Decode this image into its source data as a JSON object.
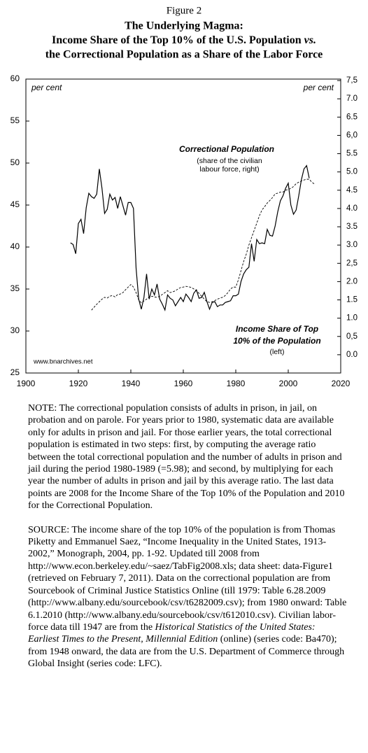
{
  "figure_label": "Figure 2",
  "chart_data": {
    "type": "line",
    "title": [
      "The Underlying Magma:",
      "Income Share of the Top 10% of the U.S. Population",
      "vs.",
      "the Correctional Population as a Share of the Labor Force"
    ],
    "y_unit_label": "per cent",
    "y2_unit_label": "per cent",
    "annotations": [
      "Correctional Population",
      "(share of the civilian",
      "labour force, right)",
      "Income Share of Top",
      "10% of the Population",
      "(left)",
      "www.bnarchives.net"
    ],
    "x": [
      1917,
      1918,
      1919,
      1920,
      1921,
      1922,
      1923,
      1924,
      1925,
      1926,
      1927,
      1928,
      1929,
      1930,
      1931,
      1932,
      1933,
      1934,
      1935,
      1936,
      1937,
      1938,
      1939,
      1940,
      1941,
      1942,
      1943,
      1944,
      1945,
      1946,
      1947,
      1948,
      1949,
      1950,
      1951,
      1952,
      1953,
      1954,
      1955,
      1956,
      1957,
      1958,
      1959,
      1960,
      1961,
      1962,
      1963,
      1964,
      1965,
      1966,
      1967,
      1968,
      1969,
      1970,
      1971,
      1972,
      1973,
      1974,
      1975,
      1976,
      1977,
      1978,
      1979,
      1980,
      1981,
      1982,
      1983,
      1984,
      1985,
      1986,
      1987,
      1988,
      1989,
      1990,
      1991,
      1992,
      1993,
      1994,
      1995,
      1996,
      1997,
      1998,
      1999,
      2000,
      2001,
      2002,
      2003,
      2004,
      2005,
      2006,
      2007,
      2008,
      2009,
      2010
    ],
    "series": [
      {
        "color": "#000000",
        "line_style": "solid",
        "values": [
          40.5,
          40.3,
          39.2,
          42.8,
          43.3,
          41.6,
          44.7,
          46.4,
          46.0,
          45.8,
          46.3,
          49.3,
          47.0,
          44.0,
          44.5,
          46.3,
          45.6,
          45.9,
          44.6,
          46.0,
          44.9,
          43.8,
          45.3,
          45.3,
          44.6,
          37.5,
          33.8,
          32.6,
          34.0,
          36.8,
          33.8,
          35.0,
          34.3,
          35.6,
          33.8,
          33.2,
          32.5,
          34.3,
          33.9,
          33.7,
          33.0,
          33.5,
          34.0,
          33.5,
          34.4,
          34.0,
          33.5,
          34.5,
          34.9,
          33.9,
          34.0,
          34.6,
          33.5,
          32.6,
          33.4,
          33.5,
          32.9,
          33.1,
          33.1,
          33.4,
          33.5,
          33.6,
          34.2,
          34.2,
          34.4,
          35.9,
          36.8,
          37.3,
          37.6,
          40.4,
          38.3,
          40.9,
          40.4,
          40.5,
          40.4,
          42.1,
          41.4,
          41.3,
          42.5,
          44.2,
          45.5,
          46.1,
          47.0,
          47.6,
          45.0,
          43.9,
          44.4,
          46.1,
          48.0,
          49.3,
          49.7,
          48.2,
          null,
          null
        ]
      },
      {
        "color": "#000000",
        "line_style": "dashed",
        "axis": "y2",
        "values": [
          null,
          null,
          null,
          null,
          null,
          null,
          null,
          null,
          1.22,
          1.3,
          1.38,
          1.45,
          1.52,
          1.57,
          1.55,
          1.6,
          1.62,
          1.58,
          1.65,
          1.66,
          1.7,
          1.78,
          1.85,
          1.92,
          1.85,
          1.7,
          1.5,
          1.42,
          1.47,
          1.52,
          1.58,
          1.6,
          1.58,
          1.57,
          1.6,
          1.65,
          1.7,
          1.75,
          1.7,
          1.72,
          1.75,
          1.8,
          1.84,
          1.85,
          1.87,
          1.86,
          1.84,
          1.8,
          1.75,
          1.68,
          1.6,
          1.52,
          1.45,
          1.43,
          1.45,
          1.48,
          1.52,
          1.55,
          1.57,
          1.62,
          1.7,
          1.8,
          1.85,
          1.85,
          2.05,
          2.3,
          2.55,
          2.75,
          3.0,
          3.2,
          3.4,
          3.6,
          3.8,
          3.96,
          4.05,
          4.15,
          4.22,
          4.3,
          4.4,
          4.42,
          4.45,
          4.45,
          4.5,
          4.52,
          4.55,
          4.6,
          4.68,
          4.72,
          4.75,
          4.78,
          4.8,
          4.8,
          4.72,
          4.67
        ]
      }
    ],
    "xlim": [
      1900,
      2020
    ],
    "xticks": [
      1900,
      1920,
      1940,
      1960,
      1980,
      2000,
      2020
    ],
    "ylim": [
      25,
      60
    ],
    "yticks": [
      25,
      30,
      35,
      40,
      45,
      50,
      55,
      60
    ],
    "y2lim": [
      -0.5,
      7.54
    ],
    "y2ticks": [
      {
        "value": 0,
        "label": "0.0"
      },
      {
        "value": 0.5,
        "label": "0,5"
      },
      {
        "value": 1,
        "label": "1.0"
      },
      {
        "value": 1.5,
        "label": "1.5"
      },
      {
        "value": 2,
        "label": "2.0"
      },
      {
        "value": 2.5,
        "label": "2,5"
      },
      {
        "value": 3,
        "label": "3.0"
      },
      {
        "value": 3.5,
        "label": "3.5"
      },
      {
        "value": 4,
        "label": "4.0"
      },
      {
        "value": 4.5,
        "label": "4.5"
      },
      {
        "value": 5,
        "label": "5.0"
      },
      {
        "value": 5.5,
        "label": "5.5"
      },
      {
        "value": 6,
        "label": "6,0"
      },
      {
        "value": 6.5,
        "label": "6.5"
      },
      {
        "value": 7,
        "label": "7.0"
      },
      {
        "value": 7.5,
        "label": "7,5"
      }
    ],
    "grid": false
  },
  "note": "NOTE: The correctional population consists of adults in prison, in jail, on probation and on parole. For years prior to 1980, systematic data are available only for adults in prison and jail. For those earlier years, the total correctional population is estimated in two steps: first, by computing the average ratio between the total correctional population and the number of adults in prison and jail during the period 1980-1989 (=5.98); and second, by multiplying for each year the number of adults in prison and jail by this average ratio. The last data points are 2008 for the Income Share of the Top 10% of the Population and 2010 for the Correctional Population.",
  "source": [
    "SOURCE: The income share of the top 10% of the population is from Thomas Piketty and Emmanuel Saez, “Income Inequality in the United States, 1913-2002,” Monograph, 2004, pp. 1-92. Updated till 2008 from http://www.econ.berkeley.edu/~saez/TabFig2008.xls; data sheet: data-Figure1 (retrieved on February 7, 2011). Data on the correctional population are from Sourcebook of Criminal Justice Statistics Online (till 1979: Table 6.28.2009 (http://www.albany.edu/sourcebook/csv/t6282009.csv); from 1980 onward: Table 6.1.2010 (http://www.albany.edu/sourcebook/csv/t612010.csv). Civilian labor-force data till 1947 are from the ",
    "Historical Statistics of the United States: Earliest Times to the Present, Millennial Edition",
    " (online) (series code: Ba470); from 1948 onward, the data are from the U.S. Department of Commerce through Global Insight (series code: LFC)."
  ]
}
